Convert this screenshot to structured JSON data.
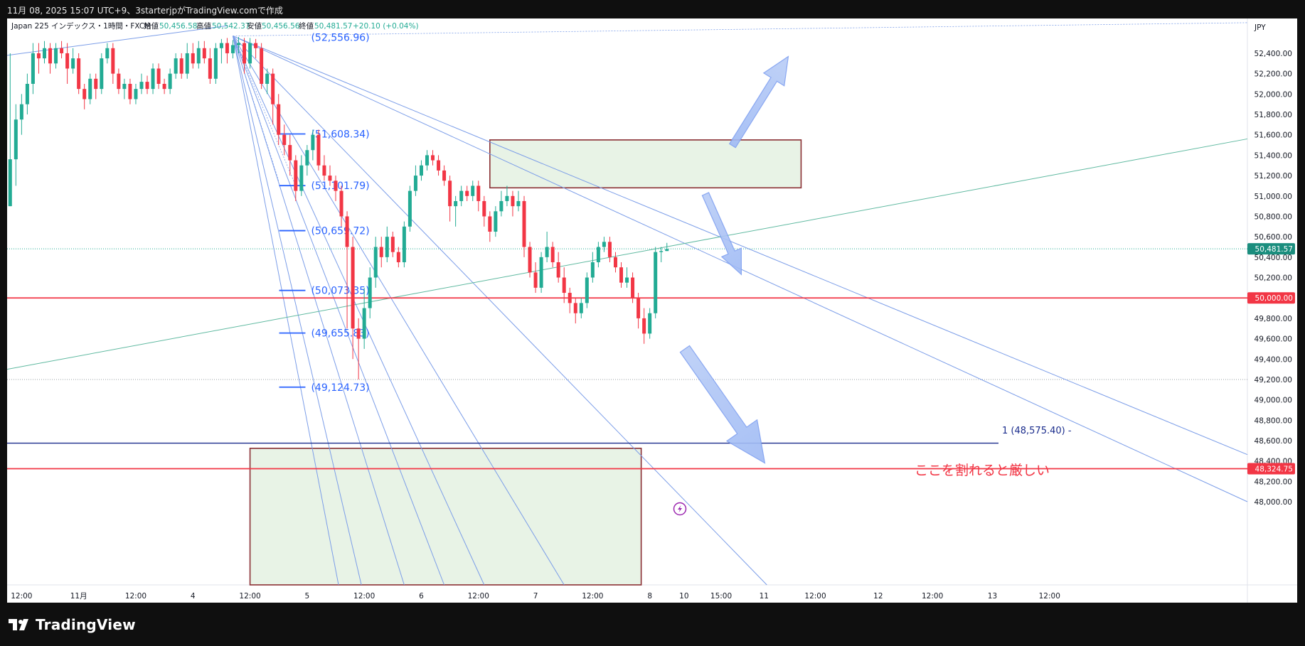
{
  "header": {
    "caption": "11月 08, 2025 15:07 UTC+9、3starterjpがTradingView.comで作成"
  },
  "footer": {
    "brand": "TradingView"
  },
  "chart_data": {
    "type": "candlestick",
    "symbol_line": "Japan 225 インデックス・1時間・FXCM",
    "ohlc_legend": {
      "open_label": "始値",
      "open": "50,456.58",
      "high_label": "高値",
      "high": "50,542.37",
      "low_label": "安値",
      "low": "50,456.56",
      "close_label": "終値",
      "close": "50,481.57",
      "change": "+20.10 (+0.04%)"
    },
    "currency": "JPY",
    "y_ticks": [
      48000,
      48200,
      48400,
      48600,
      48800,
      49000,
      49200,
      49400,
      49600,
      49800,
      50000,
      50200,
      50400,
      50600,
      50800,
      51000,
      51200,
      51400,
      51600,
      51800,
      52000,
      52200,
      52400
    ],
    "ylim": [
      47945,
      52560
    ],
    "x_ticks": [
      {
        "i": 2,
        "label": "12:00"
      },
      {
        "i": 12,
        "label": "11月"
      },
      {
        "i": 22,
        "label": "12:00"
      },
      {
        "i": 32,
        "label": "4"
      },
      {
        "i": 42,
        "label": "12:00"
      },
      {
        "i": 52,
        "label": "5"
      },
      {
        "i": 62,
        "label": "12:00"
      },
      {
        "i": 72,
        "label": "6"
      },
      {
        "i": 82,
        "label": "12:00"
      },
      {
        "i": 92,
        "label": "7"
      },
      {
        "i": 102,
        "label": "12:00"
      },
      {
        "i": 112,
        "label": "8"
      },
      {
        "i": 118,
        "label": "10"
      },
      {
        "i": 124.5,
        "label": "15:00"
      },
      {
        "i": 132,
        "label": "11"
      },
      {
        "i": 141,
        "label": "12:00"
      },
      {
        "i": 152,
        "label": "12"
      },
      {
        "i": 161.5,
        "label": "12:00"
      },
      {
        "i": 172,
        "label": "13"
      },
      {
        "i": 182,
        "label": "12:00"
      }
    ],
    "price_badges": [
      {
        "label": "50,481.57",
        "price": 50481.57,
        "color": "#1b8e7e"
      },
      {
        "label": "50,000.00",
        "price": 50000.0,
        "color": "#f23645"
      },
      {
        "label": "48,324.75",
        "price": 48324.75,
        "color": "#f23645"
      }
    ],
    "horizontal_lines": [
      {
        "price": 50000,
        "color": "#f23645"
      },
      {
        "price": 48324.75,
        "color": "#f23645"
      },
      {
        "price": 48575.4,
        "color": "#1a2c8c"
      }
    ],
    "dotted_lines": [
      50481.57,
      49200
    ],
    "fib_levels": [
      {
        "label": "(52,556.96)",
        "price": 52556.96
      },
      {
        "label": "(51,608.34)",
        "price": 51608.34
      },
      {
        "label": "(51,101.79)",
        "price": 51101.79
      },
      {
        "label": "(50,659.72)",
        "price": 50659.72
      },
      {
        "label": "(50,073.35)",
        "price": 50073.35
      },
      {
        "label": "(49,655.83)",
        "price": 49655.83
      },
      {
        "label": "(49,124.73)",
        "price": 49124.73
      }
    ],
    "level_label": "1 (48,575.40) -",
    "annotation": "ここを割れると厳しい",
    "candles": [
      [
        50.9,
        51.36,
        50.9,
        52.4
      ],
      [
        51.36,
        51.75,
        51.1,
        51.9
      ],
      [
        51.75,
        51.9,
        51.6,
        52.0
      ],
      [
        51.9,
        52.1,
        51.8,
        52.2
      ],
      [
        52.1,
        52.4,
        52.0,
        52.5
      ],
      [
        52.4,
        52.35,
        52.2,
        52.5
      ],
      [
        52.35,
        52.45,
        52.3,
        52.52
      ],
      [
        52.45,
        52.3,
        52.2,
        52.5
      ],
      [
        52.3,
        52.45,
        52.25,
        52.5
      ],
      [
        52.45,
        52.4,
        52.35,
        52.52
      ],
      [
        52.4,
        52.25,
        52.1,
        52.5
      ],
      [
        52.25,
        52.35,
        52.2,
        52.45
      ],
      [
        52.35,
        52.05,
        52.0,
        52.4
      ],
      [
        52.05,
        51.95,
        51.85,
        52.1
      ],
      [
        51.95,
        52.15,
        51.9,
        52.2
      ],
      [
        52.15,
        52.05,
        51.95,
        52.2
      ],
      [
        52.05,
        52.35,
        52.0,
        52.4
      ],
      [
        52.35,
        52.45,
        52.3,
        52.5
      ],
      [
        52.45,
        52.2,
        52.1,
        52.5
      ],
      [
        52.2,
        52.05,
        52.0,
        52.25
      ],
      [
        52.05,
        52.1,
        51.95,
        52.15
      ],
      [
        52.1,
        51.95,
        51.9,
        52.15
      ],
      [
        51.95,
        52.05,
        51.9,
        52.1
      ],
      [
        52.05,
        52.12,
        52.0,
        52.2
      ],
      [
        52.12,
        52.05,
        52.0,
        52.18
      ],
      [
        52.05,
        52.25,
        52.0,
        52.3
      ],
      [
        52.25,
        52.1,
        52.05,
        52.3
      ],
      [
        52.1,
        52.05,
        52.0,
        52.15
      ],
      [
        52.05,
        52.2,
        52.0,
        52.25
      ],
      [
        52.2,
        52.35,
        52.15,
        52.4
      ],
      [
        52.35,
        52.2,
        52.15,
        52.4
      ],
      [
        52.2,
        52.4,
        52.15,
        52.5
      ],
      [
        52.4,
        52.3,
        52.25,
        52.5
      ],
      [
        52.3,
        52.45,
        52.25,
        52.52
      ],
      [
        52.45,
        52.35,
        52.3,
        52.52
      ],
      [
        52.35,
        52.15,
        52.1,
        52.45
      ],
      [
        52.15,
        52.45,
        52.1,
        52.5
      ],
      [
        52.45,
        52.5,
        52.3,
        52.54
      ],
      [
        52.5,
        52.4,
        52.3,
        52.55
      ],
      [
        52.4,
        52.48,
        52.35,
        52.53
      ],
      [
        52.48,
        52.5,
        52.4,
        52.56
      ],
      [
        52.5,
        52.3,
        52.2,
        52.55
      ],
      [
        52.3,
        52.5,
        52.25,
        52.55
      ],
      [
        52.5,
        52.45,
        52.35,
        52.54
      ],
      [
        52.45,
        52.1,
        52.05,
        52.5
      ],
      [
        52.1,
        52.2,
        52.0,
        52.25
      ],
      [
        52.2,
        51.9,
        51.7,
        52.25
      ],
      [
        51.9,
        51.6,
        51.5,
        52.0
      ],
      [
        51.6,
        51.5,
        51.4,
        51.7
      ],
      [
        51.5,
        51.35,
        51.2,
        51.6
      ],
      [
        51.35,
        51.05,
        50.95,
        51.4
      ],
      [
        51.05,
        51.3,
        51.0,
        51.4
      ],
      [
        51.3,
        51.45,
        51.2,
        51.5
      ],
      [
        51.45,
        51.6,
        51.35,
        51.65
      ],
      [
        51.6,
        51.3,
        51.25,
        51.65
      ],
      [
        51.3,
        51.2,
        51.15,
        51.4
      ],
      [
        51.2,
        51.15,
        51.1,
        51.3
      ],
      [
        51.15,
        51.05,
        50.95,
        51.2
      ],
      [
        51.05,
        50.8,
        50.7,
        51.1
      ],
      [
        50.8,
        50.5,
        49.7,
        50.85
      ],
      [
        50.5,
        49.7,
        49.4,
        50.6
      ],
      [
        49.7,
        49.6,
        49.2,
        49.8
      ],
      [
        49.6,
        49.9,
        49.5,
        50.1
      ],
      [
        49.9,
        50.2,
        49.8,
        50.3
      ],
      [
        50.2,
        50.5,
        50.1,
        50.6
      ],
      [
        50.5,
        50.4,
        50.3,
        50.6
      ],
      [
        50.4,
        50.6,
        50.35,
        50.7
      ],
      [
        50.6,
        50.45,
        50.4,
        50.65
      ],
      [
        50.45,
        50.35,
        50.3,
        50.5
      ],
      [
        50.35,
        50.7,
        50.3,
        50.75
      ],
      [
        50.7,
        51.05,
        50.65,
        51.1
      ],
      [
        51.05,
        51.2,
        51.0,
        51.3
      ],
      [
        51.2,
        51.3,
        51.15,
        51.35
      ],
      [
        51.3,
        51.4,
        51.25,
        51.45
      ],
      [
        51.4,
        51.35,
        51.3,
        51.45
      ],
      [
        51.35,
        51.25,
        51.2,
        51.4
      ],
      [
        51.25,
        51.15,
        51.1,
        51.3
      ],
      [
        51.15,
        50.9,
        50.75,
        51.2
      ],
      [
        50.9,
        50.95,
        50.7,
        51.0
      ],
      [
        50.95,
        51.05,
        50.9,
        51.1
      ],
      [
        51.05,
        51.0,
        50.95,
        51.1
      ],
      [
        51.0,
        51.1,
        50.95,
        51.15
      ],
      [
        51.1,
        50.95,
        50.85,
        51.15
      ],
      [
        50.95,
        50.8,
        50.7,
        51.0
      ],
      [
        50.8,
        50.65,
        50.55,
        50.85
      ],
      [
        50.65,
        50.85,
        50.6,
        50.9
      ],
      [
        50.85,
        50.95,
        50.8,
        51.05
      ],
      [
        50.95,
        51.0,
        50.9,
        51.1
      ],
      [
        51.0,
        50.9,
        50.8,
        51.05
      ],
      [
        50.9,
        50.95,
        50.85,
        51.05
      ],
      [
        50.95,
        50.5,
        50.4,
        51.0
      ],
      [
        50.5,
        50.25,
        50.2,
        50.55
      ],
      [
        50.25,
        50.1,
        50.05,
        50.35
      ],
      [
        50.1,
        50.4,
        50.05,
        50.45
      ],
      [
        50.4,
        50.5,
        50.35,
        50.65
      ],
      [
        50.5,
        50.35,
        50.3,
        50.55
      ],
      [
        50.35,
        50.2,
        50.15,
        50.45
      ],
      [
        50.2,
        50.05,
        49.95,
        50.3
      ],
      [
        50.05,
        49.95,
        49.85,
        50.1
      ],
      [
        49.95,
        49.85,
        49.75,
        50.0
      ],
      [
        49.85,
        49.95,
        49.8,
        50.0
      ],
      [
        49.95,
        50.2,
        49.9,
        50.25
      ],
      [
        50.2,
        50.35,
        50.15,
        50.45
      ],
      [
        50.35,
        50.5,
        50.3,
        50.55
      ],
      [
        50.5,
        50.55,
        50.45,
        50.6
      ],
      [
        50.55,
        50.4,
        50.35,
        50.6
      ],
      [
        50.4,
        50.3,
        50.25,
        50.45
      ],
      [
        50.3,
        50.15,
        50.1,
        50.35
      ],
      [
        50.15,
        50.2,
        50.1,
        50.3
      ],
      [
        50.2,
        50.0,
        49.95,
        50.25
      ],
      [
        50.0,
        49.8,
        49.7,
        50.05
      ],
      [
        49.8,
        49.65,
        49.55,
        49.9
      ],
      [
        49.65,
        49.85,
        49.6,
        49.9
      ],
      [
        49.85,
        50.45,
        49.8,
        50.5
      ],
      [
        50.45,
        50.46,
        50.35,
        50.5
      ],
      [
        50.46,
        50.48,
        50.46,
        50.54
      ]
    ]
  }
}
